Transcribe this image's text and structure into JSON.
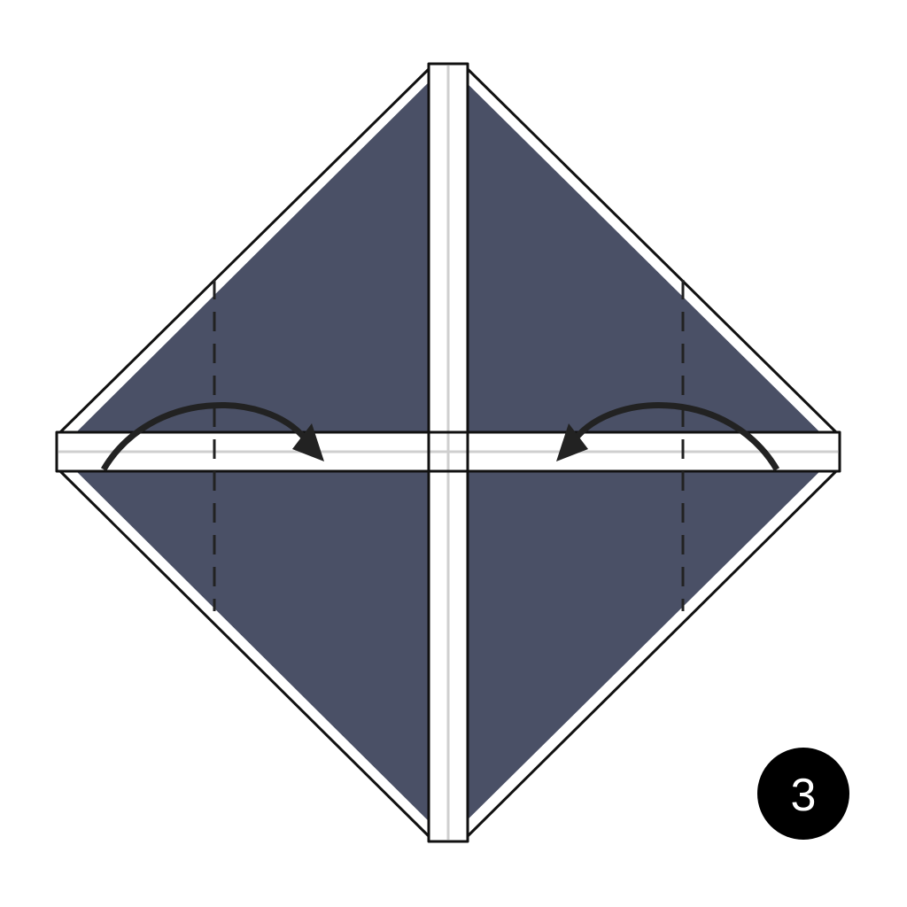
{
  "step": {
    "number": "3"
  },
  "colors": {
    "paper": "#4a5066",
    "outline": "#111111",
    "strip": "#ffffff",
    "strip_center_line": "#cfcfcf",
    "arrow": "#222222",
    "fold_line": "#222222",
    "badge": "#000000",
    "badge_text": "#ffffff"
  },
  "diagram": {
    "shape": "diamond",
    "fold_lines": [
      "left-valley-fold",
      "right-valley-fold"
    ],
    "fold_line_style": "dashed",
    "arrows": [
      "left-fold-arrow",
      "right-fold-arrow"
    ]
  }
}
